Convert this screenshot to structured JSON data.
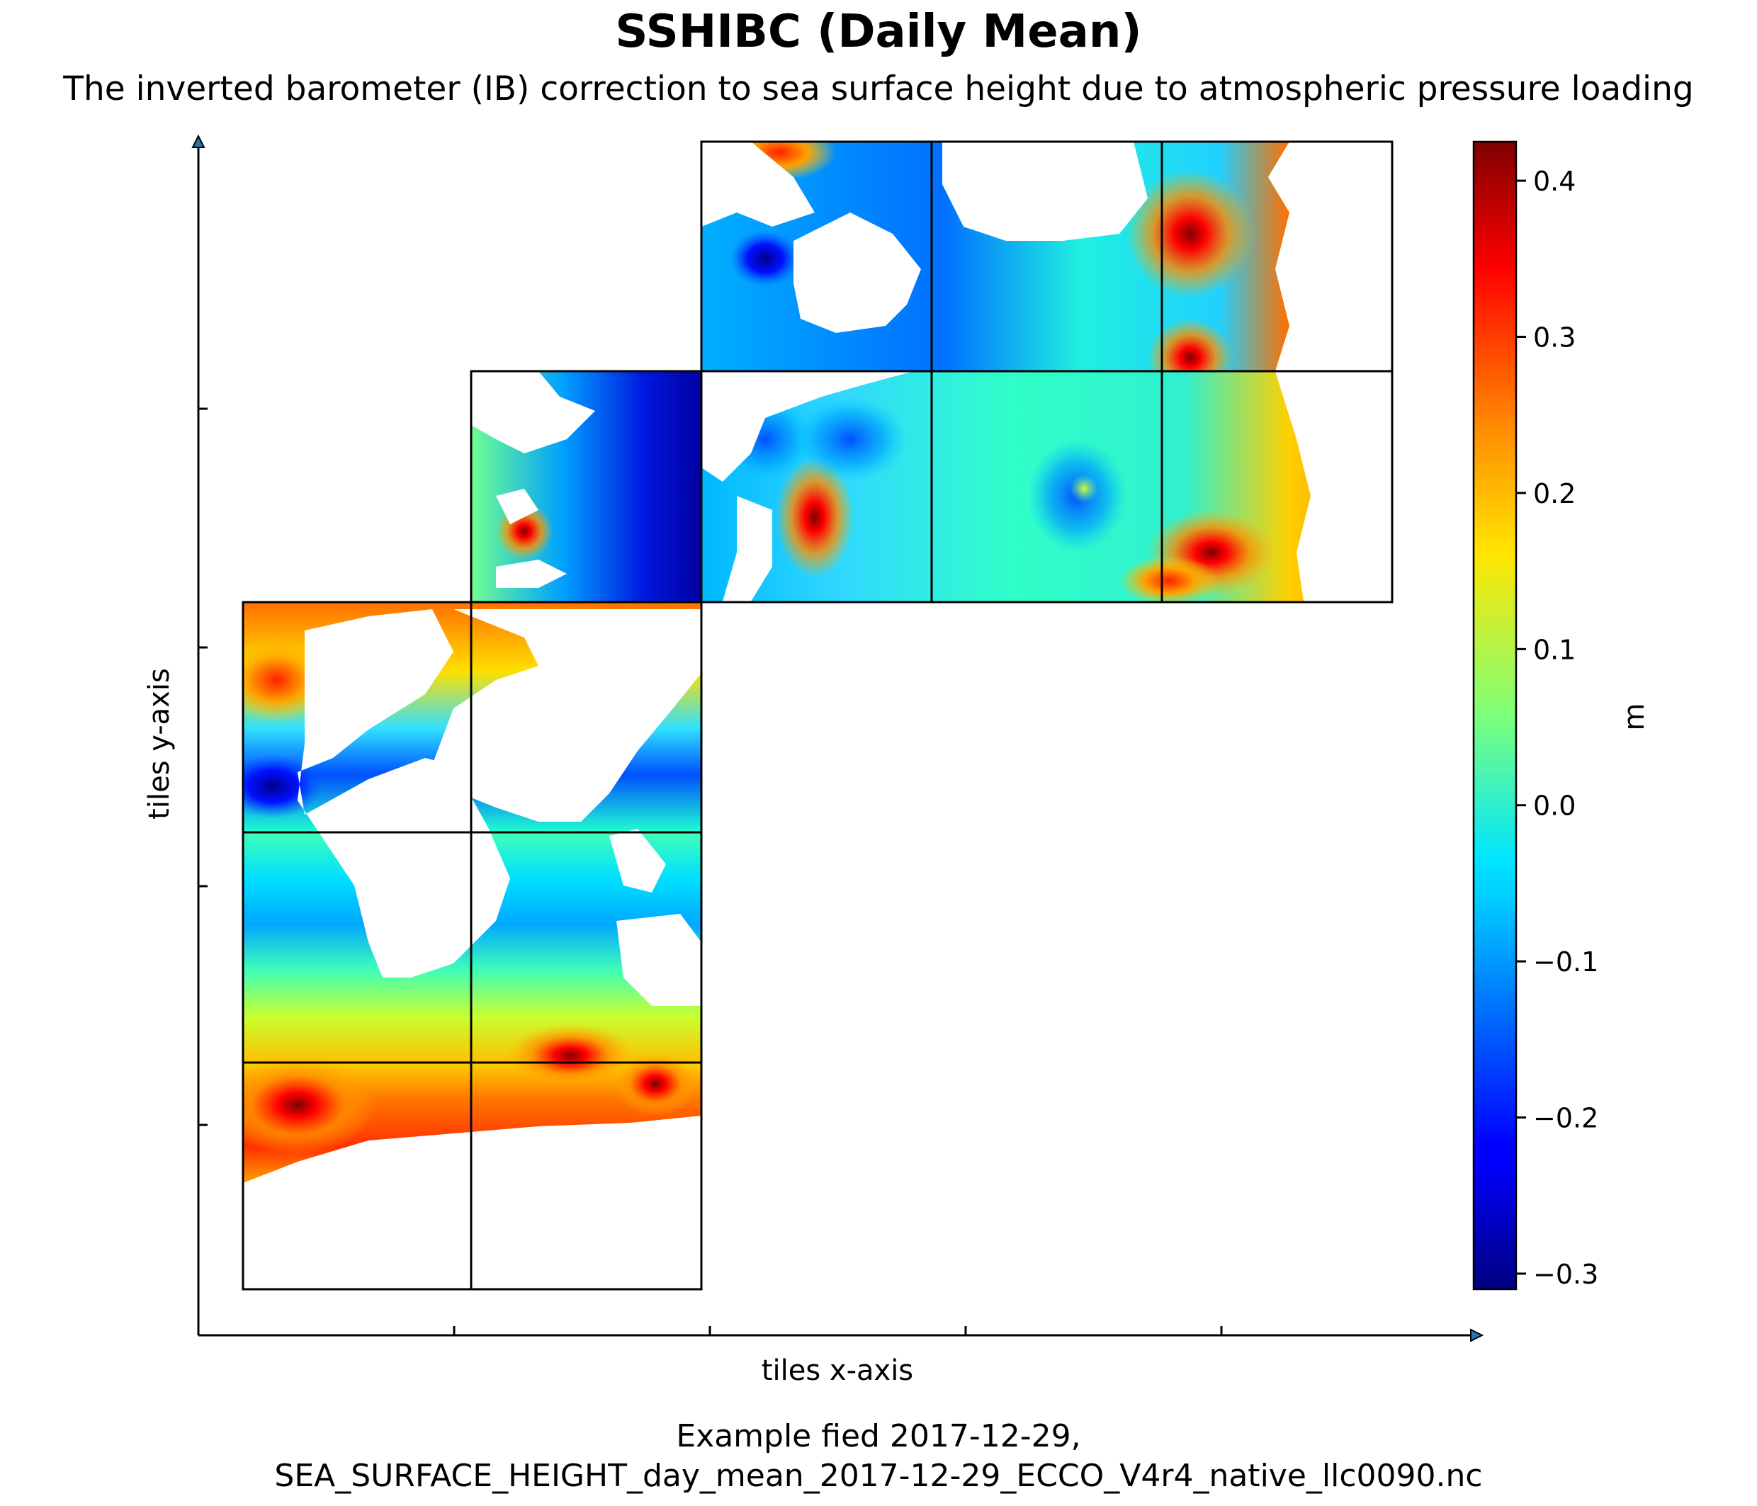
{
  "title": "SSHIBC (Daily Mean)",
  "subtitle": "The inverted barometer (IB) correction to sea surface height due to atmospheric pressure loading",
  "caption_line1": "Example fied 2017-12-29,",
  "caption_line2": "SEA_SURFACE_HEIGHT_day_mean_2017-12-29_ECCO_V4r4_native_llc0090.nc",
  "chart_data": {
    "type": "heatmap",
    "title": "SSHIBC (Daily Mean)",
    "subtitle": "The inverted barometer (IB) correction to sea surface height due to atmospheric pressure loading",
    "xlabel": "tiles x-axis",
    "ylabel": "tiles y-axis",
    "colormap": "jet",
    "colorbar": {
      "label": "m",
      "vmin": -0.31,
      "vmax": 0.425,
      "ticks": [
        -0.3,
        -0.2,
        -0.1,
        0.0,
        0.1,
        0.2,
        0.3,
        0.4
      ],
      "tick_labels": [
        "−0.3",
        "−0.2",
        "−0.1",
        "0.0",
        "0.1",
        "0.2",
        "0.3",
        "0.4"
      ]
    },
    "x_ticks": 5,
    "y_ticks": 4,
    "grid": false,
    "tile_grid": {
      "description": "ECCO llc90 native tiles arranged in a 4 by 5 panel grid",
      "tiles": [
        {
          "col": 0,
          "row": 0,
          "mean": 0.17
        },
        {
          "col": 1,
          "row": 0,
          "mean": 0.19
        },
        {
          "col": 0,
          "row": 1,
          "mean": 0.0
        },
        {
          "col": 1,
          "row": 1,
          "mean": -0.02
        },
        {
          "col": 0,
          "row": 2,
          "mean": 0.05
        },
        {
          "col": 1,
          "row": 2,
          "mean": 0.0
        },
        {
          "col": 2,
          "row": 3,
          "mean": -0.04
        },
        {
          "col": 1,
          "row": 3,
          "mean": -0.12
        },
        {
          "col": 3,
          "row": 3,
          "mean": 0.0
        },
        {
          "col": 4,
          "row": 3,
          "mean": 0.22
        },
        {
          "col": 2,
          "row": 4,
          "mean": -0.08
        },
        {
          "col": 3,
          "row": 4,
          "mean": 0.0
        },
        {
          "col": 4,
          "row": 4,
          "mean": 0.3
        }
      ]
    }
  }
}
